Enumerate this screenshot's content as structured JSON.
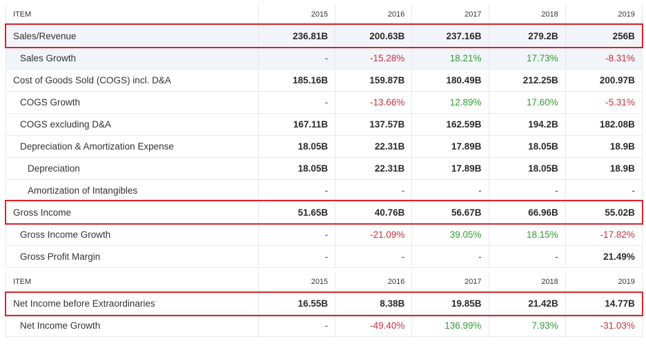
{
  "table1": {
    "header": {
      "item": "ITEM",
      "years": [
        "2015",
        "2016",
        "2017",
        "2018",
        "2019"
      ]
    },
    "rows": [
      {
        "label": "Sales/Revenue",
        "indent": 0,
        "shaded": true,
        "highlighted": true,
        "values": [
          "236.81B",
          "200.63B",
          "237.16B",
          "279.2B",
          "256B"
        ],
        "tones": [
          "num",
          "num",
          "num",
          "num",
          "num"
        ]
      },
      {
        "label": "Sales Growth",
        "indent": 1,
        "shaded": true,
        "values": [
          "-",
          "-15.28%",
          "18.21%",
          "17.73%",
          "-8.31%"
        ],
        "tones": [
          "dash",
          "neg",
          "pos",
          "pos",
          "neg"
        ]
      },
      {
        "label": "Cost of Goods Sold (COGS) incl. D&A",
        "indent": 0,
        "values": [
          "185.16B",
          "159.87B",
          "180.49B",
          "212.25B",
          "200.97B"
        ],
        "tones": [
          "num",
          "num",
          "num",
          "num",
          "num"
        ]
      },
      {
        "label": "COGS Growth",
        "indent": 1,
        "values": [
          "-",
          "-13.66%",
          "12.89%",
          "17.60%",
          "-5.31%"
        ],
        "tones": [
          "dash",
          "neg",
          "pos",
          "pos",
          "neg"
        ]
      },
      {
        "label": "COGS excluding D&A",
        "indent": 1,
        "values": [
          "167.11B",
          "137.57B",
          "162.59B",
          "194.2B",
          "182.08B"
        ],
        "tones": [
          "num",
          "num",
          "num",
          "num",
          "num"
        ]
      },
      {
        "label": "Depreciation & Amortization Expense",
        "indent": 1,
        "values": [
          "18.05B",
          "22.31B",
          "17.89B",
          "18.05B",
          "18.9B"
        ],
        "tones": [
          "num",
          "num",
          "num",
          "num",
          "num"
        ]
      },
      {
        "label": "Depreciation",
        "indent": 2,
        "values": [
          "18.05B",
          "22.31B",
          "17.89B",
          "18.05B",
          "18.9B"
        ],
        "tones": [
          "num",
          "num",
          "num",
          "num",
          "num"
        ]
      },
      {
        "label": "Amortization of Intangibles",
        "indent": 2,
        "values": [
          "-",
          "-",
          "-",
          "-",
          "-"
        ],
        "tones": [
          "dash",
          "dash",
          "dash",
          "dash",
          "dash"
        ]
      },
      {
        "label": "Gross Income",
        "indent": 0,
        "highlighted": true,
        "values": [
          "51.65B",
          "40.76B",
          "56.67B",
          "66.96B",
          "55.02B"
        ],
        "tones": [
          "num",
          "num",
          "num",
          "num",
          "num"
        ]
      },
      {
        "label": "Gross Income Growth",
        "indent": 1,
        "values": [
          "-",
          "-21.09%",
          "39.05%",
          "18.15%",
          "-17.82%"
        ],
        "tones": [
          "dash",
          "neg",
          "pos",
          "pos",
          "neg"
        ]
      },
      {
        "label": "Gross Profit Margin",
        "indent": 1,
        "values": [
          "-",
          "-",
          "-",
          "-",
          "21.49%"
        ],
        "tones": [
          "dash",
          "dash",
          "dash",
          "dash",
          "num"
        ]
      }
    ]
  },
  "table2": {
    "header": {
      "item": "ITEM",
      "years": [
        "2015",
        "2016",
        "2017",
        "2018",
        "2019"
      ]
    },
    "rows": [
      {
        "label": "Net Income before Extraordinaries",
        "indent": 0,
        "highlighted": true,
        "values": [
          "16.55B",
          "8.38B",
          "19.85B",
          "21.42B",
          "14.77B"
        ],
        "tones": [
          "num",
          "num",
          "num",
          "num",
          "num"
        ]
      },
      {
        "label": "Net Income Growth",
        "indent": 1,
        "values": [
          "-",
          "-49.40%",
          "136.99%",
          "7.93%",
          "-31.03%"
        ],
        "tones": [
          "dash",
          "neg",
          "pos",
          "pos",
          "neg"
        ]
      }
    ]
  },
  "colors": {
    "highlight_border": "#d8232a",
    "negative": "#c9303a",
    "positive": "#2e9b2e",
    "shaded_row": "#f1f4f8"
  }
}
